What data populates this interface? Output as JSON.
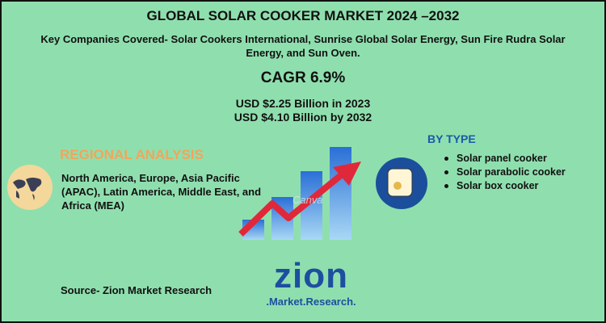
{
  "header": {
    "title": "GLOBAL SOLAR COOKER MARKET 2024 –2032",
    "subtitle": "Key Companies Covered- Solar Cookers International, Sunrise Global Solar Energy, Sun Fire Rudra Solar Energy, and Sun Oven."
  },
  "cagr": "CAGR 6.9%",
  "market_size": [
    "USD $2.25 Billion in 2023",
    "USD $4.10 Billion by 2032"
  ],
  "regional": {
    "heading": "REGIONAL ANALYSIS",
    "text": "North America, Europe, Asia Pacific (APAC), Latin America,  Middle East, and Africa (MEA)"
  },
  "by_type": {
    "heading": "BY TYPE",
    "items": [
      "Solar panel cooker",
      "Solar parabolic cooker",
      "Solar box cooker"
    ]
  },
  "watermark": "Canva",
  "source": "Source- Zion Market Research",
  "logo": {
    "name": "zion",
    "tagline": ".Market.Research."
  }
}
